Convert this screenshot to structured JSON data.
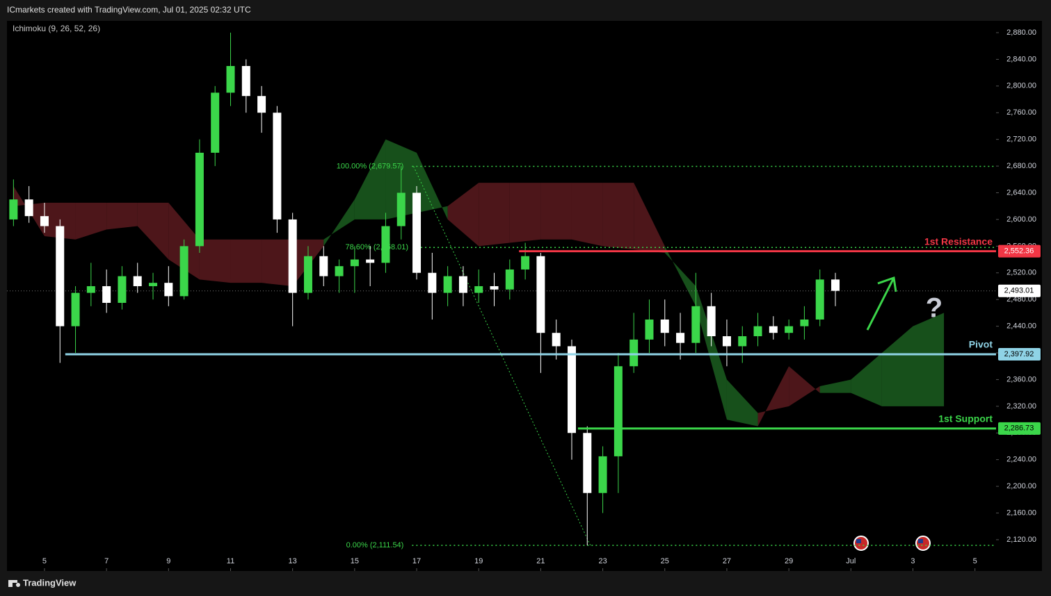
{
  "header": {
    "title": "ICmarkets created with TradingView.com, Jul 01, 2025 02:32 UTC",
    "brand": "TradingView"
  },
  "chart_data": {
    "type": "candlestick",
    "indicator": "Ichimoku (9, 26, 52, 26)",
    "up_color": "#3bd64a",
    "down_color": "#ffffff",
    "x": [
      4,
      4.5,
      5,
      5.5,
      6,
      6.5,
      7,
      7.5,
      8,
      8.5,
      9,
      9.5,
      10,
      10.5,
      11,
      11.5,
      12,
      12.5,
      13,
      13.5,
      14,
      14.5,
      15,
      15.5,
      16,
      16.5,
      17,
      17.5,
      18,
      18.5,
      19,
      19.5,
      20,
      20.5,
      21,
      21.5,
      22,
      22.5,
      23,
      23.5,
      24,
      24.5,
      25,
      25.5,
      26,
      26.5,
      27,
      27.5,
      28,
      28.5,
      29,
      29.5,
      30,
      30.5
    ],
    "open": [
      2600,
      2630,
      2605,
      2590,
      2440,
      2490,
      2500,
      2475,
      2515,
      2500,
      2505,
      2485,
      2560,
      2700,
      2790,
      2830,
      2785,
      2760,
      2600,
      2490,
      2545,
      2515,
      2530,
      2540,
      2535,
      2590,
      2640,
      2520,
      2490,
      2515,
      2490,
      2500,
      2495,
      2525,
      2545,
      2430,
      2410,
      2280,
      2190,
      2245,
      2380,
      2420,
      2450,
      2430,
      2415,
      2470,
      2425,
      2410,
      2425,
      2440,
      2430,
      2440,
      2450,
      2510
    ],
    "high": [
      2660,
      2650,
      2625,
      2600,
      2500,
      2535,
      2525,
      2530,
      2535,
      2520,
      2530,
      2570,
      2720,
      2800,
      2880,
      2840,
      2800,
      2770,
      2610,
      2560,
      2560,
      2540,
      2560,
      2560,
      2610,
      2680,
      2650,
      2550,
      2530,
      2530,
      2525,
      2520,
      2540,
      2565,
      2550,
      2450,
      2420,
      2290,
      2260,
      2400,
      2460,
      2480,
      2480,
      2460,
      2520,
      2490,
      2450,
      2440,
      2460,
      2455,
      2450,
      2470,
      2525,
      2520
    ],
    "low": [
      2590,
      2595,
      2580,
      2385,
      2400,
      2470,
      2460,
      2465,
      2490,
      2480,
      2470,
      2480,
      2550,
      2680,
      2770,
      2760,
      2730,
      2580,
      2440,
      2480,
      2500,
      2490,
      2490,
      2500,
      2520,
      2570,
      2510,
      2450,
      2470,
      2470,
      2475,
      2470,
      2480,
      2510,
      2370,
      2390,
      2240,
      2111.54,
      2160,
      2190,
      2370,
      2400,
      2410,
      2390,
      2400,
      2410,
      2380,
      2385,
      2410,
      2420,
      2420,
      2420,
      2440,
      2470
    ],
    "close": [
      2630,
      2605,
      2590,
      2440,
      2490,
      2500,
      2475,
      2515,
      2500,
      2505,
      2485,
      2560,
      2700,
      2790,
      2830,
      2785,
      2760,
      2600,
      2490,
      2545,
      2515,
      2530,
      2540,
      2535,
      2590,
      2640,
      2520,
      2490,
      2515,
      2490,
      2500,
      2495,
      2525,
      2545,
      2430,
      2410,
      2280,
      2190,
      2245,
      2380,
      2420,
      2450,
      2430,
      2415,
      2470,
      2425,
      2410,
      2425,
      2440,
      2430,
      2440,
      2450,
      2510,
      2493.01
    ],
    "cloud": {
      "x": [
        4,
        5,
        6,
        7,
        8,
        9,
        10,
        11,
        12,
        13,
        14,
        15,
        16,
        17,
        18,
        19,
        20,
        21,
        22,
        23,
        24,
        25,
        26,
        27,
        28,
        29,
        30,
        31,
        32,
        33,
        34
      ],
      "span_a": [
        2650,
        2575,
        2570,
        2585,
        2590,
        2540,
        2510,
        2505,
        2505,
        2500,
        2560,
        2630,
        2720,
        2700,
        2600,
        2560,
        2565,
        2570,
        2570,
        2560,
        2555,
        2550,
        2500,
        2360,
        2310,
        2320,
        2350,
        2360,
        2400,
        2440,
        2460
      ],
      "span_b": [
        2620,
        2625,
        2625,
        2625,
        2625,
        2625,
        2570,
        2570,
        2570,
        2570,
        2570,
        2600,
        2600,
        2610,
        2620,
        2655,
        2655,
        2655,
        2655,
        2655,
        2655,
        2560,
        2470,
        2300,
        2290,
        2380,
        2340,
        2340,
        2320,
        2320,
        2320
      ],
      "bull_color": "#1b5e20",
      "bear_color": "#5a1a1e"
    },
    "levels": [
      {
        "label": "1st Resistance",
        "value": 2552.36,
        "value_label": "2,552.36",
        "x_start": 20.3,
        "color": "#f23645"
      },
      {
        "label": "Pivot",
        "value": 2397.92,
        "value_label": "2,397.92",
        "x_start": 5.67,
        "color": "#8fd3e6"
      },
      {
        "label": "1st Support",
        "value": 2286.73,
        "value_label": "2,286.73",
        "x_start": 22.2,
        "color": "#3bd64a"
      }
    ],
    "current_price": {
      "value": 2493.01,
      "label": "2,493.01"
    },
    "fib": [
      {
        "label": "100.00% (2,679.57)",
        "value": 2679.57,
        "x_start": 16.85
      },
      {
        "label": "78.60% (2,558.01)",
        "value": 2558.01,
        "x_start": 17.0
      },
      {
        "label": "0.00% (2,111.54)",
        "value": 2111.54,
        "x_start": 16.85
      }
    ],
    "fib_color": "#3bd64a",
    "fib_trend": {
      "x": [
        16.9,
        22.6
      ],
      "y": [
        2679.57,
        2111.54
      ]
    },
    "xlim": [
      3.79,
      35.68
    ],
    "ylim": [
      2073.1,
      2897.7
    ],
    "xticks": [
      5,
      7,
      9,
      11,
      13,
      15,
      17,
      19,
      21,
      23,
      25,
      27,
      29,
      {
        "value": 31,
        "label": "Jul"
      },
      {
        "value": 33,
        "label": "3"
      },
      {
        "value": 35,
        "label": "5"
      }
    ],
    "yticks": [
      {
        "value": 2120,
        "label": "2,120.00"
      },
      {
        "value": 2160,
        "label": "2,160.00"
      },
      {
        "value": 2200,
        "label": "2,200.00"
      },
      {
        "value": 2240,
        "label": "2,240.00"
      },
      {
        "value": 2280,
        "label": "2,280.00"
      },
      {
        "value": 2320,
        "label": "2,320.00"
      },
      {
        "value": 2360,
        "label": "2,360.00"
      },
      {
        "value": 2400,
        "label": "2,400.00"
      },
      {
        "value": 2440,
        "label": "2,440.00"
      },
      {
        "value": 2480,
        "label": "2,480.00"
      },
      {
        "value": 2520,
        "label": "2,520.00"
      },
      {
        "value": 2560,
        "label": "2,560.00"
      },
      {
        "value": 2600,
        "label": "2,600.00"
      },
      {
        "value": 2640,
        "label": "2,640.00"
      },
      {
        "value": 2680,
        "label": "2,680.00"
      },
      {
        "value": 2720,
        "label": "2,720.00"
      },
      {
        "value": 2760,
        "label": "2,760.00"
      },
      {
        "value": 2800,
        "label": "2,800.00"
      },
      {
        "value": 2840,
        "label": "2,840.00"
      },
      {
        "value": 2880,
        "label": "2,880.00"
      }
    ]
  }
}
